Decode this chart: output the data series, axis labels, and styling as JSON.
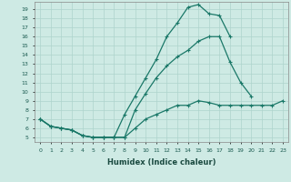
{
  "title": "",
  "xlabel": "Humidex (Indice chaleur)",
  "ylabel": "",
  "bg_color": "#ceeae4",
  "grid_color": "#aed4cc",
  "line_color": "#1a7868",
  "line1_y": [
    7,
    6.2,
    6,
    5.8,
    5.2,
    5.0,
    5.0,
    5.0,
    7.5,
    9.5,
    11.5,
    13.5,
    16,
    17.5,
    19.2,
    19.5,
    18.5,
    18.3,
    16.0,
    null,
    null,
    null,
    null,
    null
  ],
  "line2_y": [
    7,
    6.2,
    6,
    5.8,
    5.2,
    5.0,
    5.0,
    5.0,
    5.0,
    8.0,
    9.8,
    11.5,
    12.8,
    13.8,
    14.5,
    15.5,
    16.0,
    16.0,
    13.2,
    11.0,
    9.5,
    null,
    null,
    null
  ],
  "line3_y": [
    7,
    6.2,
    6,
    5.8,
    5.2,
    5.0,
    5.0,
    5.0,
    5.0,
    6.0,
    7.0,
    7.5,
    8.0,
    8.5,
    8.5,
    9.0,
    8.8,
    8.5,
    8.5,
    8.5,
    8.5,
    8.5,
    8.5,
    9.0
  ],
  "xlim": [
    -0.5,
    23.5
  ],
  "ylim": [
    4.5,
    19.8
  ],
  "yticks": [
    5,
    6,
    7,
    8,
    9,
    10,
    11,
    12,
    13,
    14,
    15,
    16,
    17,
    18,
    19
  ],
  "xticks": [
    0,
    1,
    2,
    3,
    4,
    5,
    6,
    7,
    8,
    9,
    10,
    11,
    12,
    13,
    14,
    15,
    16,
    17,
    18,
    19,
    20,
    21,
    22,
    23
  ],
  "markersize": 2.5,
  "linewidth": 0.9
}
